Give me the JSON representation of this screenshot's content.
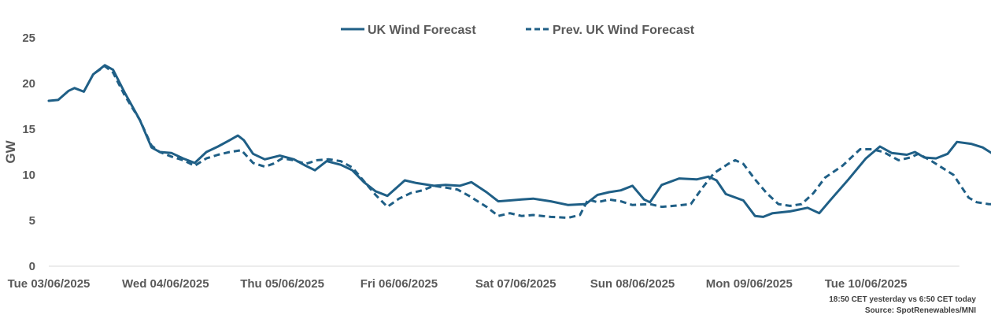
{
  "chart_data": {
    "type": "line",
    "title": "",
    "xlabel": "",
    "ylabel": "GW",
    "ylim": [
      0,
      25
    ],
    "yticks": [
      0,
      5,
      10,
      15,
      20,
      25
    ],
    "x_range_days": [
      0,
      7.8
    ],
    "x_tick_labels": [
      "Tue 03/06/2025",
      "Wed 04/06/2025",
      "Thu 05/06/2025",
      "Fri 06/06/2025",
      "Sat 07/06/2025",
      "Sun 08/06/2025",
      "Mon 09/06/2025",
      "Tue 10/06/2025"
    ],
    "grid": false,
    "legend_position": "top-center",
    "series": [
      {
        "name": "UK Wind Forecast",
        "color": "#1f5f86",
        "style": "solid",
        "points": [
          [
            0,
            18.1
          ],
          [
            0.08,
            18.2
          ],
          [
            0.17,
            19.2
          ],
          [
            0.22,
            19.5
          ],
          [
            0.3,
            19.1
          ],
          [
            0.38,
            21.0
          ],
          [
            0.48,
            22.0
          ],
          [
            0.55,
            21.5
          ],
          [
            0.65,
            19.0
          ],
          [
            0.78,
            16.0
          ],
          [
            0.88,
            13.0
          ],
          [
            0.95,
            12.5
          ],
          [
            1.05,
            12.4
          ],
          [
            1.15,
            11.8
          ],
          [
            1.25,
            11.3
          ],
          [
            1.35,
            12.5
          ],
          [
            1.45,
            13.1
          ],
          [
            1.55,
            13.8
          ],
          [
            1.62,
            14.3
          ],
          [
            1.67,
            13.8
          ],
          [
            1.75,
            12.3
          ],
          [
            1.85,
            11.7
          ],
          [
            1.98,
            12.1
          ],
          [
            2.1,
            11.7
          ],
          [
            2.2,
            11.0
          ],
          [
            2.28,
            10.5
          ],
          [
            2.38,
            11.5
          ],
          [
            2.5,
            11.1
          ],
          [
            2.6,
            10.5
          ],
          [
            2.7,
            9.2
          ],
          [
            2.8,
            8.2
          ],
          [
            2.9,
            7.7
          ],
          [
            3.05,
            9.4
          ],
          [
            3.15,
            9.1
          ],
          [
            3.3,
            8.8
          ],
          [
            3.4,
            8.9
          ],
          [
            3.52,
            8.8
          ],
          [
            3.62,
            9.2
          ],
          [
            3.75,
            8.1
          ],
          [
            3.85,
            7.1
          ],
          [
            3.95,
            7.2
          ],
          [
            4.05,
            7.3
          ],
          [
            4.15,
            7.4
          ],
          [
            4.3,
            7.1
          ],
          [
            4.45,
            6.7
          ],
          [
            4.6,
            6.8
          ],
          [
            4.7,
            7.8
          ],
          [
            4.8,
            8.1
          ],
          [
            4.9,
            8.3
          ],
          [
            5.0,
            8.8
          ],
          [
            5.1,
            7.3
          ],
          [
            5.15,
            7.0
          ],
          [
            5.25,
            8.9
          ],
          [
            5.4,
            9.6
          ],
          [
            5.55,
            9.5
          ],
          [
            5.65,
            9.8
          ],
          [
            5.72,
            9.4
          ],
          [
            5.8,
            7.9
          ],
          [
            5.95,
            7.2
          ],
          [
            6.05,
            5.5
          ],
          [
            6.12,
            5.4
          ],
          [
            6.2,
            5.8
          ],
          [
            6.35,
            6.0
          ],
          [
            6.5,
            6.4
          ],
          [
            6.6,
            5.8
          ],
          [
            6.7,
            7.3
          ],
          [
            6.85,
            9.5
          ],
          [
            7.0,
            11.8
          ],
          [
            7.12,
            13.1
          ],
          [
            7.22,
            12.4
          ],
          [
            7.35,
            12.2
          ],
          [
            7.42,
            12.5
          ],
          [
            7.5,
            11.9
          ],
          [
            7.6,
            11.8
          ],
          [
            7.7,
            12.3
          ],
          [
            7.78,
            13.6
          ],
          [
            7.9,
            13.4
          ],
          [
            8.0,
            13.0
          ],
          [
            8.1,
            12.2
          ],
          [
            8.2,
            11.0
          ],
          [
            8.32,
            8.9
          ]
        ]
      },
      {
        "name": "Prev. UK Wind Forecast",
        "color": "#1f5f86",
        "style": "dashed",
        "points": [
          [
            0.4,
            21.2
          ],
          [
            0.48,
            21.9
          ],
          [
            0.55,
            21.2
          ],
          [
            0.65,
            18.7
          ],
          [
            0.78,
            16.0
          ],
          [
            0.88,
            13.2
          ],
          [
            0.95,
            12.5
          ],
          [
            1.05,
            12.0
          ],
          [
            1.15,
            11.6
          ],
          [
            1.25,
            11.0
          ],
          [
            1.35,
            11.8
          ],
          [
            1.45,
            12.2
          ],
          [
            1.55,
            12.5
          ],
          [
            1.65,
            12.7
          ],
          [
            1.75,
            11.3
          ],
          [
            1.85,
            10.9
          ],
          [
            1.92,
            11.2
          ],
          [
            2.0,
            11.8
          ],
          [
            2.1,
            11.6
          ],
          [
            2.2,
            11.2
          ],
          [
            2.3,
            11.6
          ],
          [
            2.4,
            11.7
          ],
          [
            2.5,
            11.5
          ],
          [
            2.6,
            10.8
          ],
          [
            2.7,
            9.3
          ],
          [
            2.8,
            7.8
          ],
          [
            2.9,
            6.5
          ],
          [
            3.0,
            7.4
          ],
          [
            3.1,
            8.0
          ],
          [
            3.2,
            8.3
          ],
          [
            3.3,
            8.8
          ],
          [
            3.4,
            8.6
          ],
          [
            3.5,
            8.4
          ],
          [
            3.6,
            7.7
          ],
          [
            3.75,
            6.5
          ],
          [
            3.85,
            5.5
          ],
          [
            3.95,
            5.8
          ],
          [
            4.05,
            5.5
          ],
          [
            4.15,
            5.6
          ],
          [
            4.3,
            5.4
          ],
          [
            4.45,
            5.3
          ],
          [
            4.55,
            5.6
          ],
          [
            4.62,
            7.3
          ],
          [
            4.7,
            7.0
          ],
          [
            4.8,
            7.3
          ],
          [
            4.9,
            7.1
          ],
          [
            5.0,
            6.7
          ],
          [
            5.15,
            6.8
          ],
          [
            5.25,
            6.5
          ],
          [
            5.35,
            6.6
          ],
          [
            5.5,
            6.8
          ],
          [
            5.6,
            8.6
          ],
          [
            5.7,
            10.2
          ],
          [
            5.82,
            11.2
          ],
          [
            5.88,
            11.6
          ],
          [
            5.95,
            11.2
          ],
          [
            6.05,
            9.5
          ],
          [
            6.15,
            8.0
          ],
          [
            6.25,
            6.8
          ],
          [
            6.35,
            6.6
          ],
          [
            6.45,
            6.8
          ],
          [
            6.55,
            8.0
          ],
          [
            6.65,
            9.7
          ],
          [
            6.8,
            11.0
          ],
          [
            6.95,
            12.8
          ],
          [
            7.05,
            12.8
          ],
          [
            7.15,
            12.5
          ],
          [
            7.28,
            11.6
          ],
          [
            7.38,
            11.9
          ],
          [
            7.45,
            12.3
          ],
          [
            7.55,
            11.6
          ],
          [
            7.65,
            10.8
          ],
          [
            7.75,
            10.0
          ],
          [
            7.88,
            7.5
          ],
          [
            7.95,
            7.0
          ],
          [
            8.05,
            6.8
          ],
          [
            8.2,
            6.7
          ],
          [
            8.25,
            5.8
          ],
          [
            8.32,
            5.1
          ]
        ]
      }
    ]
  },
  "notes": {
    "line1": "18:50 CET yesterday vs  6:50 CET today",
    "line2": "Source: SpotRenewables/MNI"
  }
}
